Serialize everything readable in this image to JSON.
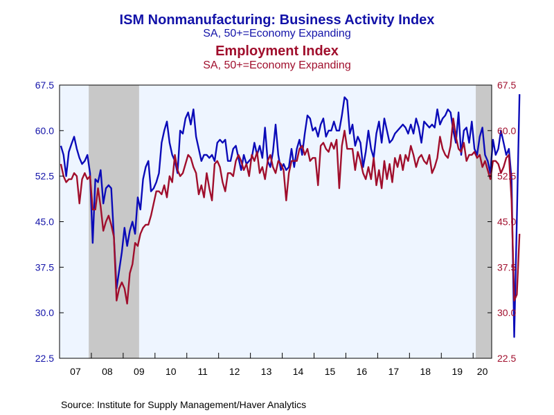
{
  "title": "ISM Nonmanufacturing: Business Activity Index",
  "subtitle1": "SA, 50+=Economy Expanding",
  "title2": "Employment Index",
  "subtitle2": "SA, 50+=Economy Expanding",
  "source": "Source:  Institute for Supply Management/Haver Analytics",
  "colors": {
    "business_activity": "#0b0bb8",
    "employment": "#a00e2c",
    "plot_bg": "#eef5ff",
    "recession": "#c8c8c8"
  },
  "chart_data": {
    "type": "line",
    "x_unit": "month",
    "x_start": "2007-01",
    "x_end": "2020-07",
    "ylim": [
      22.5,
      67.5
    ],
    "yticks": [
      "22.5",
      "30.0",
      "37.5",
      "45.0",
      "52.5",
      "60.0",
      "67.5"
    ],
    "xtick_labels": [
      "07",
      "08",
      "09",
      "10",
      "11",
      "12",
      "13",
      "14",
      "15",
      "16",
      "17",
      "18",
      "19",
      "20"
    ],
    "recessions": [
      [
        "2007-12",
        "2009-06"
      ],
      [
        "2020-02",
        "2020-07"
      ]
    ],
    "grid": false,
    "series": [
      {
        "name": "ISM Nonmanufacturing: Business Activity Index",
        "axis": "left",
        "values": [
          57.5,
          56,
          52.5,
          56.5,
          57.8,
          59,
          57,
          55.5,
          54.5,
          55,
          56,
          53,
          41.5,
          52,
          51.5,
          53.5,
          48,
          50.5,
          51,
          50.5,
          42.5,
          34,
          37,
          40,
          44,
          41,
          43.5,
          45,
          43,
          49,
          47,
          52,
          54,
          55,
          50,
          50.5,
          51.5,
          53,
          58,
          60,
          61.5,
          58,
          56,
          55,
          53,
          60,
          59.5,
          62,
          63,
          61,
          63.5,
          59,
          57,
          55,
          56,
          56,
          55.5,
          56,
          55,
          58,
          58.5,
          58,
          58.5,
          55,
          55,
          57,
          57.5,
          55.5,
          53.5,
          56,
          54.5,
          55,
          55.5,
          58,
          56,
          57.5,
          55.5,
          60.5,
          55,
          54,
          56.5,
          61,
          56,
          53.5,
          54.5,
          53.5,
          54,
          57,
          54,
          57,
          58.5,
          56,
          59.5,
          62.5,
          62,
          60,
          60.5,
          59,
          61,
          62,
          59,
          60,
          60,
          61.5,
          60,
          60,
          62.5,
          65.5,
          65,
          59.5,
          61,
          57.5,
          59,
          58,
          54,
          56.5,
          60,
          57,
          55.5,
          59.5,
          61.5,
          58,
          62,
          60,
          58,
          58.5,
          59.5,
          60,
          60.5,
          61,
          60.5,
          59.5,
          61,
          59.5,
          62,
          60.5,
          58,
          61.5,
          61,
          60.5,
          61,
          60.5,
          63.5,
          61,
          62,
          62.5,
          63.5,
          63,
          60,
          58,
          63,
          56,
          60,
          60.5,
          58,
          61.5,
          57,
          56,
          59,
          60.5,
          56,
          55,
          53,
          58.5,
          56,
          57,
          60,
          58,
          56,
          57,
          52,
          26,
          45.5,
          66
        ]
      },
      {
        "name": "Employment Index",
        "axis": "right",
        "values": [
          54.5,
          52.5,
          51.5,
          52,
          52,
          53,
          52.5,
          48,
          52,
          53,
          52,
          52.5,
          47,
          47,
          50.5,
          47.5,
          43.5,
          45,
          46,
          44.5,
          42.5,
          32,
          34,
          35,
          34,
          31.5,
          36.5,
          38,
          41.5,
          41,
          43,
          44,
          44.5,
          44.5,
          46,
          48,
          50,
          50,
          49.5,
          51,
          49,
          52.5,
          51.5,
          56,
          53.5,
          52.5,
          53,
          54.5,
          56,
          55.5,
          54,
          53,
          49.5,
          51,
          49,
          53,
          50.5,
          48.5,
          54.5,
          55,
          54,
          51.5,
          50,
          53,
          53,
          52.5,
          55,
          56,
          55,
          53.5,
          54.5,
          52.5,
          56,
          55,
          56.5,
          53,
          54,
          52,
          55,
          56,
          54,
          53,
          55,
          54.5,
          53.5,
          48.5,
          53,
          55,
          55,
          55,
          57,
          57.5,
          56,
          57,
          55,
          55.5,
          55.5,
          51,
          57.5,
          58,
          57,
          56.5,
          58,
          57,
          58.5,
          50.5,
          57.5,
          60,
          57,
          57,
          57,
          53.5,
          56.5,
          55,
          53,
          52,
          54,
          52,
          55.5,
          51,
          53.5,
          50.5,
          55,
          52,
          54.5,
          51.5,
          55.5,
          54,
          56,
          53.5,
          56,
          55,
          57.5,
          56,
          54,
          55.5,
          56,
          55,
          54.5,
          56,
          53,
          54,
          55.5,
          59,
          57,
          56,
          55.5,
          57.5,
          62,
          59,
          57,
          56.5,
          58,
          55,
          56,
          56,
          56.5,
          55.5,
          56,
          54,
          55,
          53.5,
          52,
          55,
          55,
          54.5,
          53,
          54,
          55.5,
          56,
          48.5,
          32,
          33,
          43
        ]
      }
    ]
  }
}
